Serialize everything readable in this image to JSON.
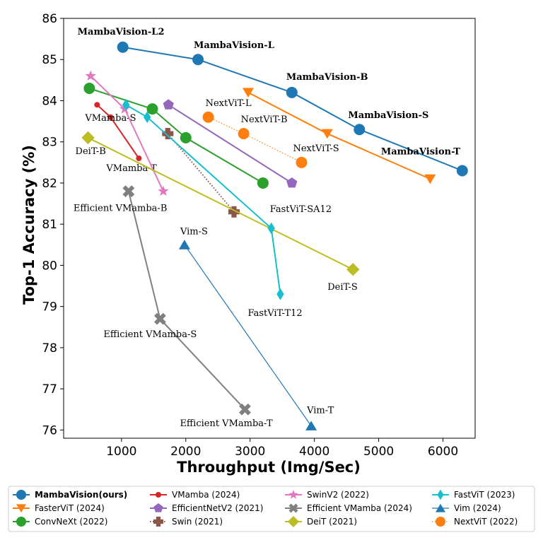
{
  "chart_data": {
    "type": "line",
    "xlabel": "Throughput (Img/Sec)",
    "ylabel": "Top-1 Accuracy (%)",
    "xlim": [
      100,
      6500
    ],
    "ylim": [
      75.8,
      86
    ],
    "xticks": [
      "1000",
      "2000",
      "3000",
      "4000",
      "5000",
      "6000"
    ],
    "xtick_values": [
      1000,
      2000,
      3000,
      4000,
      5000,
      6000
    ],
    "yticks": [
      "76",
      "77",
      "78",
      "79",
      "80",
      "81",
      "82",
      "83",
      "84",
      "85",
      "86"
    ],
    "ytick_values": [
      76,
      77,
      78,
      79,
      80,
      81,
      82,
      83,
      84,
      85,
      86
    ],
    "grid": false,
    "legend_position": "bottom",
    "series": [
      {
        "name": "MambaVision(ours)",
        "color": "#1f77b4",
        "marker": "circle",
        "line": "solid",
        "bold": true,
        "points": [
          {
            "x": 1020,
            "y": 85.3,
            "label": "MambaVision-L2"
          },
          {
            "x": 2190,
            "y": 85.0,
            "label": "MambaVision-L"
          },
          {
            "x": 3650,
            "y": 84.2,
            "label": "MambaVision-B"
          },
          {
            "x": 4700,
            "y": 83.3,
            "label": "MambaVision-S"
          },
          {
            "x": 6300,
            "y": 82.3,
            "label": "MambaVision-T"
          }
        ]
      },
      {
        "name": "FasterViT (2024)",
        "color": "#ff7f0e",
        "marker": "triangle-down",
        "line": "solid",
        "points": [
          {
            "x": 2970,
            "y": 84.2
          },
          {
            "x": 4200,
            "y": 83.2
          },
          {
            "x": 5800,
            "y": 82.1
          }
        ],
        "offset_line": "mambavision-t"
      },
      {
        "name": "ConvNeXt (2022)",
        "color": "#2ca02c",
        "marker": "circle",
        "line": "solid",
        "points": [
          {
            "x": 500,
            "y": 84.3
          },
          {
            "x": 1480,
            "y": 83.8
          },
          {
            "x": 2000,
            "y": 83.1
          },
          {
            "x": 3200,
            "y": 82.0
          }
        ]
      },
      {
        "name": "VMamba (2024)",
        "color": "#d62728",
        "marker": "small-circle",
        "line": "solid",
        "points": [
          {
            "x": 620,
            "y": 83.9
          },
          {
            "x": 830,
            "y": 83.6,
            "label": "VMamba-S"
          },
          {
            "x": 1270,
            "y": 82.6,
            "label": "VMamba-T"
          }
        ]
      },
      {
        "name": "EfficientNetV2 (2021)",
        "color": "#9467bd",
        "marker": "pentagon",
        "line": "solid",
        "points": [
          {
            "x": 1730,
            "y": 83.9
          },
          {
            "x": 3650,
            "y": 82.0
          }
        ]
      },
      {
        "name": "Swin (2021)",
        "color": "#8c564b",
        "marker": "plus",
        "line": "dotted",
        "points": [
          {
            "x": 1720,
            "y": 83.2
          },
          {
            "x": 2750,
            "y": 81.3
          }
        ]
      },
      {
        "name": "SwinV2 (2022)",
        "color": "#e377c2",
        "marker": "star",
        "line": "solid",
        "points": [
          {
            "x": 520,
            "y": 84.6
          },
          {
            "x": 1050,
            "y": 83.8
          },
          {
            "x": 1650,
            "y": 81.8
          }
        ]
      },
      {
        "name": "Efficient VMamba (2024)",
        "color": "#7f7f7f",
        "marker": "x",
        "line": "solid",
        "points": [
          {
            "x": 1110,
            "y": 81.8,
            "label": "Efficient VMamba-B"
          },
          {
            "x": 1600,
            "y": 78.7,
            "label": "Efficient VMamba-S"
          },
          {
            "x": 2920,
            "y": 76.5,
            "label": "Efficient VMamba-T"
          }
        ]
      },
      {
        "name": "DeiT (2021)",
        "color": "#bcbd22",
        "marker": "diamond",
        "line": "solid",
        "points": [
          {
            "x": 480,
            "y": 83.1,
            "label": "DeiT-B"
          },
          {
            "x": 4600,
            "y": 79.9,
            "label": "DeiT-S"
          }
        ]
      },
      {
        "name": "FastViT (2023)",
        "color": "#17becf",
        "marker": "thin-diamond",
        "line": "solid",
        "points": [
          {
            "x": 1070,
            "y": 83.9
          },
          {
            "x": 1400,
            "y": 83.6
          },
          {
            "x": 3330,
            "y": 80.9,
            "label": "FastViT-SA12"
          },
          {
            "x": 3470,
            "y": 79.3,
            "label": "FastViT-T12"
          }
        ]
      },
      {
        "name": "Vim (2024)",
        "color": "#1f77b4",
        "marker": "triangle-up",
        "line": "solid",
        "thin": true,
        "points": [
          {
            "x": 1980,
            "y": 80.5,
            "label": "Vim-S"
          },
          {
            "x": 3950,
            "y": 76.1,
            "label": "Vim-T"
          }
        ]
      },
      {
        "name": "NextViT (2022)",
        "color": "#ff7f0e",
        "marker": "circle",
        "line": "dotted",
        "thin": true,
        "points": [
          {
            "x": 2350,
            "y": 83.6,
            "label": "NextViT-L"
          },
          {
            "x": 2900,
            "y": 83.2,
            "label": "NextViT-B"
          },
          {
            "x": 3800,
            "y": 82.5,
            "label": "NextViT-S"
          }
        ]
      }
    ]
  }
}
